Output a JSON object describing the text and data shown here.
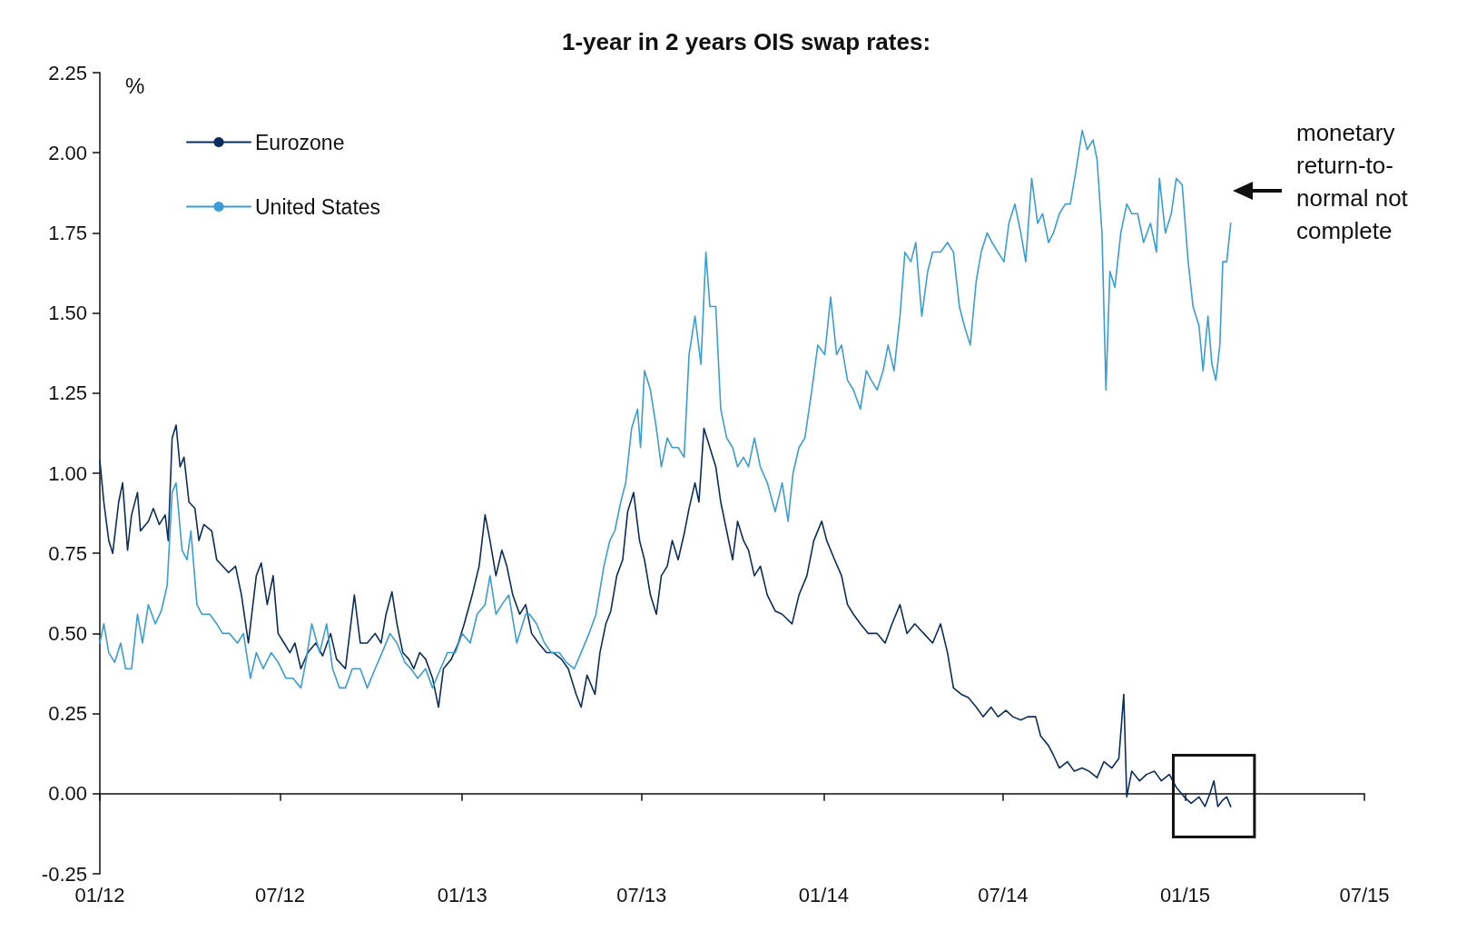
{
  "chart_data": {
    "type": "line",
    "title": "1-year in 2 years OIS swap rates:",
    "ylabel": "%",
    "annotations": [
      "monetary return-to-normal not complete"
    ],
    "xlim": [
      "2012-01-01",
      "2015-07-01"
    ],
    "xticks": [
      {
        "value": "2012-01-01",
        "label": "01/12"
      },
      {
        "value": "2012-07-01",
        "label": "07/12"
      },
      {
        "value": "2013-01-01",
        "label": "01/13"
      },
      {
        "value": "2013-07-01",
        "label": "07/13"
      },
      {
        "value": "2014-01-01",
        "label": "01/14"
      },
      {
        "value": "2014-07-01",
        "label": "07/14"
      },
      {
        "value": "2015-01-01",
        "label": "01/15"
      },
      {
        "value": "2015-07-01",
        "label": "07/15"
      }
    ],
    "ylim": [
      -0.25,
      2.25
    ],
    "yticks": [
      {
        "value": -0.25,
        "label": "-0.25"
      },
      {
        "value": 0,
        "label": "0.00"
      },
      {
        "value": 0.25,
        "label": "0.25"
      },
      {
        "value": 0.5,
        "label": "0.50"
      },
      {
        "value": 0.75,
        "label": "0.75"
      },
      {
        "value": 1,
        "label": "1.00"
      },
      {
        "value": 1.25,
        "label": "1.25"
      },
      {
        "value": 1.5,
        "label": "1.50"
      },
      {
        "value": 1.75,
        "label": "1.75"
      },
      {
        "value": 2,
        "label": "2.00"
      },
      {
        "value": 2.25,
        "label": "2.25"
      }
    ],
    "legend": "top left",
    "series": [
      {
        "name": "Eurozone",
        "color": "#0b2d5b",
        "x": [
          "2012-01-01",
          "2012-01-05",
          "2012-01-10",
          "2012-01-14",
          "2012-01-20",
          "2012-01-24",
          "2012-01-29",
          "2012-02-02",
          "2012-02-08",
          "2012-02-11",
          "2012-02-19",
          "2012-02-24",
          "2012-03-01",
          "2012-03-07",
          "2012-03-10",
          "2012-03-14",
          "2012-03-18",
          "2012-03-22",
          "2012-03-26",
          "2012-03-31",
          "2012-04-06",
          "2012-04-10",
          "2012-04-15",
          "2012-04-23",
          "2012-04-28",
          "2012-05-04",
          "2012-05-10",
          "2012-05-17",
          "2012-05-23",
          "2012-05-30",
          "2012-06-07",
          "2012-06-12",
          "2012-06-18",
          "2012-06-24",
          "2012-06-29",
          "2012-07-05",
          "2012-07-11",
          "2012-07-16",
          "2012-07-22",
          "2012-07-29",
          "2012-08-06",
          "2012-08-13",
          "2012-08-21",
          "2012-08-27",
          "2012-09-05",
          "2012-09-14",
          "2012-09-20",
          "2012-09-27",
          "2012-10-05",
          "2012-10-11",
          "2012-10-16",
          "2012-10-22",
          "2012-10-27",
          "2012-11-02",
          "2012-11-08",
          "2012-11-13",
          "2012-11-19",
          "2012-11-25",
          "2012-12-02",
          "2012-12-08",
          "2012-12-13",
          "2012-12-21",
          "2012-12-28",
          "2013-01-03",
          "2013-01-11",
          "2013-01-18",
          "2013-01-24",
          "2013-01-29",
          "2013-02-04",
          "2013-02-10",
          "2013-02-15",
          "2013-02-21",
          "2013-02-28",
          "2013-03-06",
          "2013-03-12",
          "2013-03-19",
          "2013-03-27",
          "2013-04-03",
          "2013-04-11",
          "2013-04-18",
          "2013-04-26",
          "2013-05-01",
          "2013-05-07",
          "2013-05-15",
          "2013-05-20",
          "2013-05-26",
          "2013-05-31",
          "2013-06-06",
          "2013-06-12",
          "2013-06-17",
          "2013-06-23",
          "2013-06-29",
          "2013-07-04",
          "2013-07-10",
          "2013-07-16",
          "2013-07-21",
          "2013-07-27",
          "2013-08-01",
          "2013-08-07",
          "2013-08-13",
          "2013-08-18",
          "2013-08-24",
          "2013-08-28",
          "2013-09-02",
          "2013-09-08",
          "2013-09-14",
          "2013-09-19",
          "2013-09-25",
          "2013-10-01",
          "2013-10-06",
          "2013-10-12",
          "2013-10-17",
          "2013-10-23",
          "2013-10-29",
          "2013-11-05",
          "2013-11-13",
          "2013-11-20",
          "2013-11-30",
          "2013-12-07",
          "2013-12-15",
          "2013-12-22",
          "2013-12-30",
          "2014-01-04",
          "2014-01-12",
          "2014-01-19",
          "2014-01-25",
          "2014-01-31",
          "2014-02-07",
          "2014-02-15",
          "2014-02-24",
          "2014-03-04",
          "2014-03-11",
          "2014-03-19",
          "2014-03-26",
          "2014-04-03",
          "2014-04-12",
          "2014-04-21",
          "2014-04-29",
          "2014-05-06",
          "2014-05-12",
          "2014-05-20",
          "2014-05-27",
          "2014-06-04",
          "2014-06-11",
          "2014-06-19",
          "2014-06-26",
          "2014-07-04",
          "2014-07-11",
          "2014-07-19",
          "2014-07-26",
          "2014-08-03",
          "2014-08-08",
          "2014-08-16",
          "2014-08-21",
          "2014-08-27",
          "2014-09-04",
          "2014-09-11",
          "2014-09-19",
          "2014-09-26",
          "2014-10-04",
          "2014-10-11",
          "2014-10-19",
          "2014-10-26",
          "2014-10-31",
          "2014-11-03",
          "2014-11-08",
          "2014-11-16",
          "2014-11-23",
          "2014-12-01",
          "2014-12-08",
          "2014-12-16",
          "2014-12-23",
          "2014-12-31",
          "2015-01-07",
          "2015-01-15",
          "2015-01-21",
          "2015-01-26",
          "2015-01-30",
          "2015-02-03",
          "2015-02-08",
          "2015-02-12",
          "2015-02-16"
        ],
        "values": [
          1.04,
          0.91,
          0.79,
          0.75,
          0.91,
          0.97,
          0.76,
          0.87,
          0.94,
          0.82,
          0.85,
          0.89,
          0.84,
          0.87,
          0.79,
          1.11,
          1.15,
          1.02,
          1.05,
          0.91,
          0.89,
          0.79,
          0.84,
          0.82,
          0.73,
          0.71,
          0.69,
          0.71,
          0.62,
          0.47,
          0.68,
          0.72,
          0.59,
          0.68,
          0.5,
          0.47,
          0.44,
          0.47,
          0.39,
          0.44,
          0.47,
          0.43,
          0.5,
          0.42,
          0.39,
          0.62,
          0.47,
          0.47,
          0.5,
          0.47,
          0.56,
          0.63,
          0.53,
          0.44,
          0.42,
          0.39,
          0.44,
          0.42,
          0.36,
          0.27,
          0.39,
          0.42,
          0.47,
          0.53,
          0.62,
          0.71,
          0.87,
          0.79,
          0.68,
          0.76,
          0.71,
          0.62,
          0.56,
          0.59,
          0.5,
          0.47,
          0.44,
          0.44,
          0.42,
          0.39,
          0.31,
          0.27,
          0.37,
          0.31,
          0.44,
          0.53,
          0.57,
          0.68,
          0.73,
          0.88,
          0.94,
          0.79,
          0.73,
          0.62,
          0.56,
          0.68,
          0.71,
          0.79,
          0.73,
          0.81,
          0.89,
          0.97,
          0.91,
          1.14,
          1.08,
          1.02,
          0.91,
          0.82,
          0.73,
          0.85,
          0.79,
          0.76,
          0.68,
          0.71,
          0.62,
          0.57,
          0.56,
          0.53,
          0.62,
          0.68,
          0.79,
          0.85,
          0.79,
          0.73,
          0.68,
          0.59,
          0.56,
          0.53,
          0.5,
          0.5,
          0.47,
          0.53,
          0.59,
          0.5,
          0.53,
          0.5,
          0.47,
          0.53,
          0.44,
          0.33,
          0.31,
          0.3,
          0.27,
          0.24,
          0.27,
          0.24,
          0.26,
          0.24,
          0.23,
          0.24,
          0.24,
          0.18,
          0.15,
          0.12,
          0.08,
          0.1,
          0.07,
          0.08,
          0.07,
          0.05,
          0.1,
          0.08,
          0.11,
          0.31,
          -0.01,
          0.07,
          0.04,
          0.06,
          0.07,
          0.04,
          0.06,
          0.02,
          -0.01,
          -0.03,
          -0.01,
          -0.04,
          0.0,
          0.04,
          -0.04,
          -0.02,
          -0.01,
          -0.04
        ]
      },
      {
        "name": "United States",
        "color": "#3b9dd6",
        "x": [
          "2012-01-01",
          "2012-01-05",
          "2012-01-10",
          "2012-01-16",
          "2012-01-22",
          "2012-01-27",
          "2012-02-02",
          "2012-02-08",
          "2012-02-13",
          "2012-02-19",
          "2012-02-26",
          "2012-03-03",
          "2012-03-09",
          "2012-03-14",
          "2012-03-18",
          "2012-03-24",
          "2012-03-29",
          "2012-04-02",
          "2012-04-08",
          "2012-04-13",
          "2012-04-21",
          "2012-04-28",
          "2012-05-04",
          "2012-05-11",
          "2012-05-19",
          "2012-05-25",
          "2012-06-01",
          "2012-06-07",
          "2012-06-14",
          "2012-06-22",
          "2012-06-29",
          "2012-07-07",
          "2012-07-14",
          "2012-07-22",
          "2012-07-27",
          "2012-08-02",
          "2012-08-10",
          "2012-08-17",
          "2012-08-23",
          "2012-08-30",
          "2012-09-05",
          "2012-09-12",
          "2012-09-20",
          "2012-09-27",
          "2012-10-05",
          "2012-10-12",
          "2012-10-20",
          "2012-10-27",
          "2012-11-04",
          "2012-11-10",
          "2012-11-17",
          "2012-11-25",
          "2012-12-02",
          "2012-12-10",
          "2012-12-17",
          "2012-12-25",
          "2013-01-01",
          "2013-01-09",
          "2013-01-16",
          "2013-01-24",
          "2013-01-29",
          "2013-02-04",
          "2013-02-10",
          "2013-02-17",
          "2013-02-25",
          "2013-03-06",
          "2013-03-10",
          "2013-03-17",
          "2013-03-25",
          "2013-04-01",
          "2013-04-09",
          "2013-04-16",
          "2013-04-24",
          "2013-05-01",
          "2013-05-09",
          "2013-05-16",
          "2013-05-24",
          "2013-05-30",
          "2013-06-04",
          "2013-06-10",
          "2013-06-15",
          "2013-06-21",
          "2013-06-27",
          "2013-06-30",
          "2013-07-04",
          "2013-07-10",
          "2013-07-16",
          "2013-07-21",
          "2013-07-27",
          "2013-08-01",
          "2013-08-07",
          "2013-08-13",
          "2013-08-18",
          "2013-08-24",
          "2013-08-30",
          "2013-09-04",
          "2013-09-08",
          "2013-09-14",
          "2013-09-19",
          "2013-09-25",
          "2013-10-01",
          "2013-10-06",
          "2013-10-12",
          "2013-10-17",
          "2013-10-23",
          "2013-10-29",
          "2013-11-05",
          "2013-11-13",
          "2013-11-20",
          "2013-11-26",
          "2013-12-01",
          "2013-12-07",
          "2013-12-13",
          "2013-12-20",
          "2013-12-26",
          "2014-01-02",
          "2014-01-08",
          "2014-01-14",
          "2014-01-19",
          "2014-01-25",
          "2014-01-31",
          "2014-02-07",
          "2014-02-13",
          "2014-02-18",
          "2014-02-24",
          "2014-03-02",
          "2014-03-07",
          "2014-03-13",
          "2014-03-19",
          "2014-03-24",
          "2014-03-30",
          "2014-04-04",
          "2014-04-10",
          "2014-04-16",
          "2014-04-21",
          "2014-04-29",
          "2014-05-06",
          "2014-05-12",
          "2014-05-18",
          "2014-05-23",
          "2014-05-29",
          "2014-06-04",
          "2014-06-09",
          "2014-06-15",
          "2014-06-20",
          "2014-06-26",
          "2014-07-02",
          "2014-07-07",
          "2014-07-13",
          "2014-07-19",
          "2014-07-24",
          "2014-07-30",
          "2014-08-05",
          "2014-08-10",
          "2014-08-16",
          "2014-08-21",
          "2014-08-27",
          "2014-09-02",
          "2014-09-07",
          "2014-09-13",
          "2014-09-19",
          "2014-09-24",
          "2014-09-30",
          "2014-10-04",
          "2014-10-09",
          "2014-10-13",
          "2014-10-17",
          "2014-10-22",
          "2014-10-28",
          "2014-11-03",
          "2014-11-08",
          "2014-11-14",
          "2014-11-20",
          "2014-11-27",
          "2014-12-03",
          "2014-12-06",
          "2014-12-12",
          "2014-12-18",
          "2014-12-23",
          "2014-12-29",
          "2015-01-04",
          "2015-01-09",
          "2015-01-15",
          "2015-01-19",
          "2015-01-24",
          "2015-01-28",
          "2015-02-01",
          "2015-02-05",
          "2015-02-08",
          "2015-02-12",
          "2015-02-16"
        ],
        "values": [
          0.47,
          0.53,
          0.44,
          0.41,
          0.47,
          0.39,
          0.39,
          0.56,
          0.47,
          0.59,
          0.53,
          0.57,
          0.65,
          0.94,
          0.97,
          0.76,
          0.73,
          0.82,
          0.59,
          0.56,
          0.56,
          0.53,
          0.5,
          0.5,
          0.47,
          0.5,
          0.36,
          0.44,
          0.39,
          0.44,
          0.41,
          0.36,
          0.36,
          0.33,
          0.41,
          0.53,
          0.44,
          0.53,
          0.39,
          0.33,
          0.33,
          0.39,
          0.39,
          0.33,
          0.39,
          0.44,
          0.5,
          0.47,
          0.41,
          0.39,
          0.36,
          0.39,
          0.33,
          0.39,
          0.44,
          0.44,
          0.5,
          0.47,
          0.56,
          0.59,
          0.68,
          0.56,
          0.59,
          0.62,
          0.47,
          0.56,
          0.56,
          0.53,
          0.47,
          0.44,
          0.44,
          0.41,
          0.39,
          0.44,
          0.5,
          0.56,
          0.71,
          0.79,
          0.82,
          0.91,
          0.97,
          1.14,
          1.2,
          1.08,
          1.32,
          1.26,
          1.14,
          1.02,
          1.11,
          1.08,
          1.08,
          1.05,
          1.37,
          1.49,
          1.34,
          1.69,
          1.52,
          1.52,
          1.2,
          1.11,
          1.08,
          1.02,
          1.05,
          1.02,
          1.11,
          1.02,
          0.97,
          0.88,
          0.97,
          0.85,
          1.0,
          1.08,
          1.11,
          1.26,
          1.4,
          1.37,
          1.55,
          1.37,
          1.4,
          1.29,
          1.26,
          1.2,
          1.32,
          1.29,
          1.26,
          1.32,
          1.4,
          1.32,
          1.49,
          1.69,
          1.66,
          1.72,
          1.49,
          1.63,
          1.69,
          1.69,
          1.72,
          1.69,
          1.52,
          1.46,
          1.4,
          1.6,
          1.69,
          1.75,
          1.72,
          1.69,
          1.66,
          1.78,
          1.84,
          1.75,
          1.66,
          1.92,
          1.78,
          1.81,
          1.72,
          1.75,
          1.81,
          1.84,
          1.84,
          1.95,
          2.07,
          2.01,
          2.04,
          1.98,
          1.75,
          1.26,
          1.63,
          1.58,
          1.75,
          1.84,
          1.81,
          1.81,
          1.72,
          1.78,
          1.69,
          1.92,
          1.75,
          1.81,
          1.92,
          1.9,
          1.66,
          1.52,
          1.46,
          1.32,
          1.49,
          1.34,
          1.29,
          1.4,
          1.66,
          1.66,
          1.78
        ]
      }
    ]
  }
}
